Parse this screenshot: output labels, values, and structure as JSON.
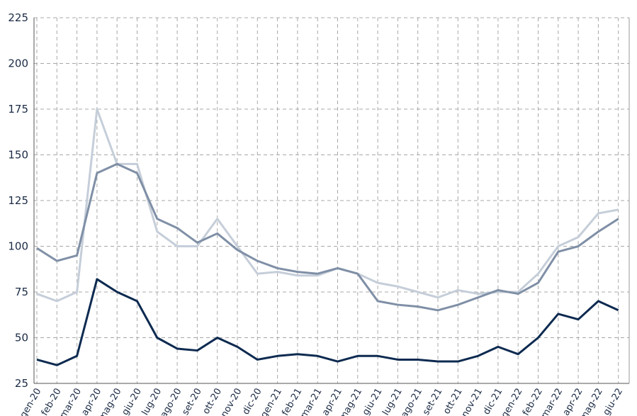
{
  "chart_data": {
    "type": "line",
    "categories": [
      "gen-20",
      "feb-20",
      "mar-20",
      "apr-20",
      "mag-20",
      "giu-20",
      "lug-20",
      "ago-20",
      "set-20",
      "ott-20",
      "nov-20",
      "dic-20",
      "gen-21",
      "feb-21",
      "mar-21",
      "apr-21",
      "mag-21",
      "giu-21",
      "lug-21",
      "ago-21",
      "set-21",
      "ott-21",
      "nov-21",
      "dic-21",
      "gen-22",
      "feb-22",
      "mar-22",
      "apr-22",
      "mag-22",
      "giu-22"
    ],
    "series": [
      {
        "color": "#c5ced9",
        "values": [
          74,
          70,
          75,
          175,
          145,
          145,
          108,
          100,
          100,
          115,
          100,
          85,
          86,
          84,
          84,
          88,
          85,
          80,
          78,
          75,
          72,
          76,
          74,
          75,
          75,
          85,
          100,
          105,
          118,
          120
        ]
      },
      {
        "color": "#7f8fa6",
        "values": [
          99,
          92,
          95,
          140,
          145,
          140,
          115,
          110,
          102,
          107,
          98,
          92,
          88,
          86,
          85,
          88,
          85,
          70,
          68,
          67,
          65,
          68,
          72,
          76,
          74,
          80,
          97,
          100,
          108,
          115
        ]
      },
      {
        "color": "#0d2a50",
        "values": [
          38,
          35,
          40,
          82,
          75,
          70,
          50,
          44,
          43,
          50,
          45,
          38,
          40,
          41,
          40,
          37,
          40,
          40,
          38,
          38,
          37,
          37,
          40,
          45,
          41,
          50,
          63,
          60,
          70,
          65
        ]
      }
    ],
    "ylim": [
      25,
      225
    ],
    "yticks": [
      25,
      50,
      75,
      100,
      125,
      150,
      175,
      200,
      225
    ],
    "grid": true
  }
}
